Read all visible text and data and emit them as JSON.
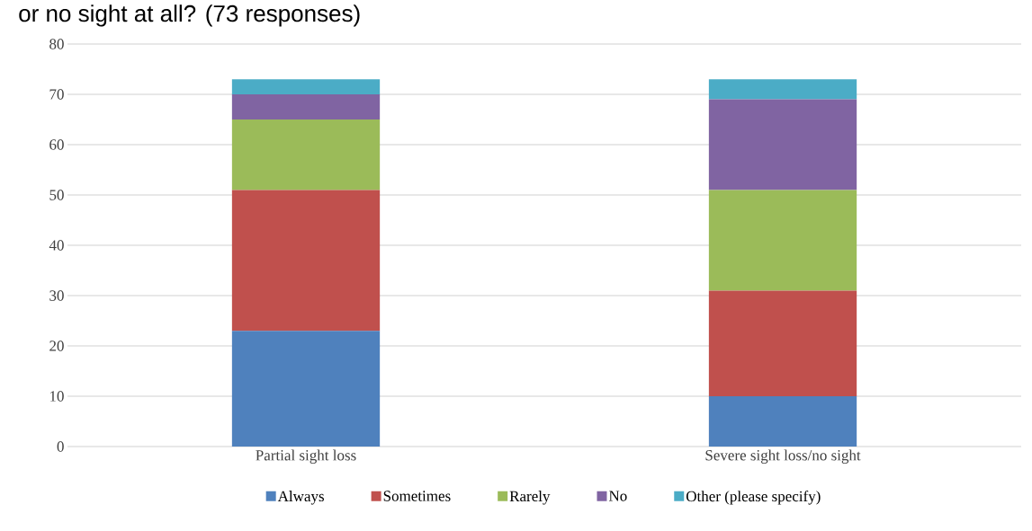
{
  "chart_data": {
    "type": "bar",
    "stacked": true,
    "title": "or no sight at all? (73 responses)",
    "categories": [
      "Partial sight loss",
      "Severe sight loss/no sight"
    ],
    "series": [
      {
        "name": "Always",
        "color": "#4f81bd",
        "values": [
          23,
          10
        ]
      },
      {
        "name": "Sometimes",
        "color": "#c0504d",
        "values": [
          28,
          21
        ]
      },
      {
        "name": "Rarely",
        "color": "#9bbb59",
        "values": [
          14,
          20
        ]
      },
      {
        "name": "No",
        "color": "#8064a2",
        "values": [
          5,
          18
        ]
      },
      {
        "name": "Other (please specify)",
        "color": "#4bacc6",
        "values": [
          3,
          4
        ]
      }
    ],
    "ylim": [
      0,
      80
    ],
    "yticks": [
      0,
      10,
      20,
      30,
      40,
      50,
      60,
      70,
      80
    ],
    "grid": "y",
    "legend": "bottom"
  }
}
